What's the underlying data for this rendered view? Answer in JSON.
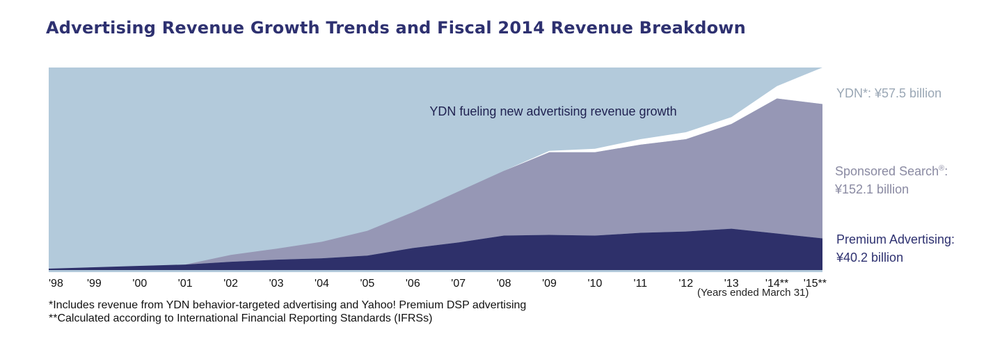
{
  "title": "Advertising Revenue Growth Trends and Fiscal 2014 Revenue Breakdown",
  "annotation": "YDN fueling new advertising revenue growth",
  "legend": {
    "ydn": "YDN*:  ¥57.5 billion",
    "sponsored_line1": "Sponsored Search",
    "sponsored_mark": "®",
    "sponsored_colon": ":",
    "sponsored_line2": "¥152.1 billion",
    "premium_line1": "Premium Advertising:",
    "premium_line2": "¥40.2 billion"
  },
  "years_note": "(Years ended March 31)",
  "footnotes": [
    "*Includes revenue from YDN behavior-targeted advertising and Yahoo! Premium DSP advertising",
    "**Calculated according to International Financial Reporting Standards (IFRSs)"
  ],
  "colors": {
    "background_area": "#b3cadb",
    "ydn": "#ffffff",
    "sponsored_search": "#9697b5",
    "premium_advertising": "#2e306a",
    "title": "#2e3170"
  },
  "chart_data": {
    "type": "area",
    "stacked": true,
    "categories": [
      "'98",
      "'99",
      "'00",
      "'01",
      "'02",
      "'03",
      "'04",
      "'05",
      "'06",
      "'07",
      "'08",
      "'09",
      "'10",
      "'11",
      "'12",
      "'13",
      "'14**",
      "'15**"
    ],
    "series": [
      {
        "name": "Premium Advertising",
        "values": [
          1,
          2,
          3,
          4,
          6,
          7.5,
          8.5,
          10.5,
          16,
          20,
          25,
          25.5,
          25,
          27,
          28,
          30,
          26.5,
          23
        ]
      },
      {
        "name": "Sponsored Search",
        "values": [
          0,
          0,
          0,
          0,
          5,
          8,
          12,
          18,
          26,
          37,
          47,
          60,
          60.5,
          64,
          67,
          76,
          98,
          97.5
        ]
      },
      {
        "name": "YDN",
        "values": [
          0,
          0,
          0,
          0,
          0,
          0,
          0,
          0,
          0,
          0,
          0,
          1,
          2.5,
          4,
          5,
          5,
          9,
          26.5
        ]
      }
    ],
    "ylim": [
      0,
      147
    ],
    "legend_position": "right"
  }
}
